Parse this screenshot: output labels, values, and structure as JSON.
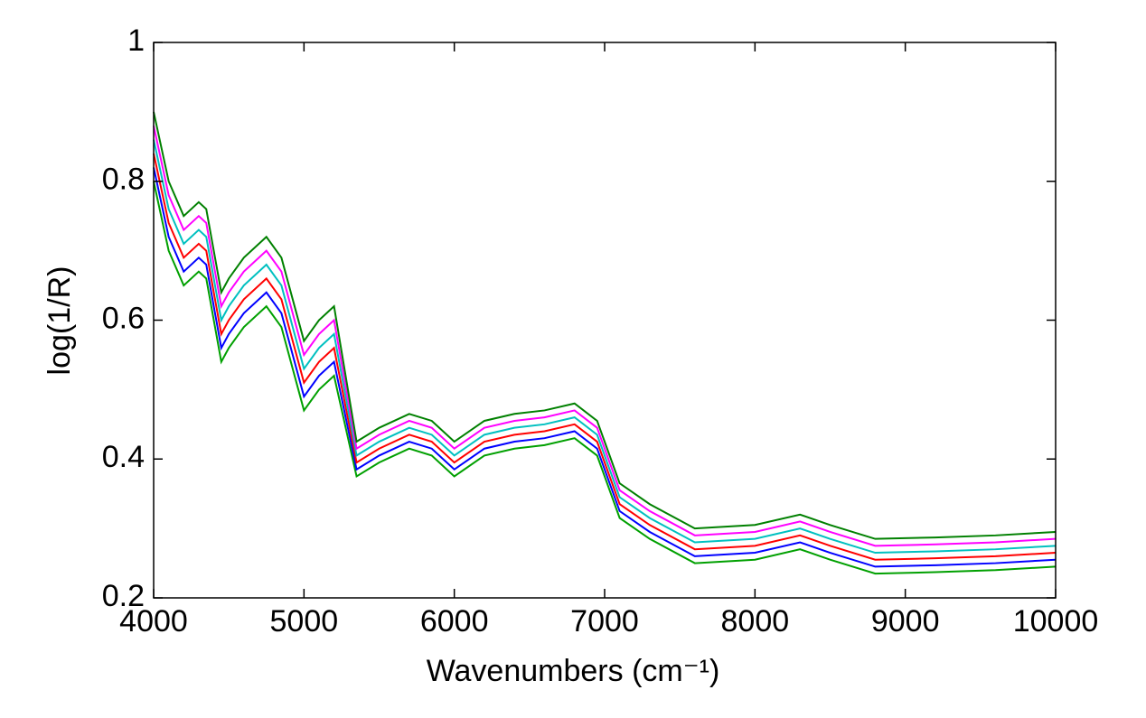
{
  "chart_data": {
    "type": "line",
    "xlabel": "Wavenumbers (cm⁻¹)",
    "ylabel": "log(1/R)",
    "x": [
      4000,
      4100,
      4200,
      4300,
      4350,
      4450,
      4500,
      4600,
      4750,
      4850,
      5000,
      5100,
      5200,
      5350,
      5500,
      5700,
      5850,
      6000,
      6200,
      6400,
      6600,
      6800,
      6950,
      7100,
      7300,
      7600,
      8000,
      8300,
      8500,
      8800,
      9200,
      9600,
      10000
    ],
    "series": [
      {
        "color": "#00a000",
        "values": [
          0.8,
          0.7,
          0.65,
          0.67,
          0.66,
          0.54,
          0.56,
          0.59,
          0.62,
          0.59,
          0.47,
          0.5,
          0.52,
          0.375,
          0.395,
          0.415,
          0.405,
          0.375,
          0.405,
          0.415,
          0.42,
          0.43,
          0.405,
          0.315,
          0.285,
          0.25,
          0.255,
          0.27,
          0.255,
          0.235,
          0.237,
          0.24,
          0.245
        ]
      },
      {
        "color": "#0000ff",
        "values": [
          0.82,
          0.72,
          0.67,
          0.69,
          0.68,
          0.56,
          0.58,
          0.61,
          0.64,
          0.61,
          0.49,
          0.52,
          0.54,
          0.385,
          0.405,
          0.425,
          0.415,
          0.385,
          0.415,
          0.425,
          0.43,
          0.44,
          0.415,
          0.325,
          0.295,
          0.26,
          0.265,
          0.28,
          0.265,
          0.245,
          0.247,
          0.25,
          0.255
        ]
      },
      {
        "color": "#ff0000",
        "values": [
          0.84,
          0.74,
          0.69,
          0.71,
          0.7,
          0.58,
          0.6,
          0.63,
          0.66,
          0.63,
          0.51,
          0.54,
          0.56,
          0.395,
          0.415,
          0.435,
          0.425,
          0.395,
          0.425,
          0.435,
          0.44,
          0.45,
          0.425,
          0.335,
          0.305,
          0.27,
          0.275,
          0.29,
          0.275,
          0.255,
          0.257,
          0.26,
          0.265
        ]
      },
      {
        "color": "#00c0c0",
        "values": [
          0.86,
          0.76,
          0.71,
          0.73,
          0.72,
          0.6,
          0.62,
          0.65,
          0.68,
          0.65,
          0.53,
          0.56,
          0.58,
          0.405,
          0.425,
          0.445,
          0.435,
          0.405,
          0.435,
          0.445,
          0.45,
          0.46,
          0.435,
          0.345,
          0.315,
          0.28,
          0.285,
          0.3,
          0.285,
          0.265,
          0.267,
          0.27,
          0.275
        ]
      },
      {
        "color": "#ff00ff",
        "values": [
          0.88,
          0.78,
          0.73,
          0.75,
          0.74,
          0.62,
          0.64,
          0.67,
          0.7,
          0.67,
          0.55,
          0.58,
          0.6,
          0.415,
          0.435,
          0.455,
          0.445,
          0.415,
          0.445,
          0.455,
          0.46,
          0.47,
          0.445,
          0.355,
          0.325,
          0.29,
          0.295,
          0.31,
          0.295,
          0.275,
          0.277,
          0.28,
          0.285
        ]
      },
      {
        "color": "#008000",
        "values": [
          0.9,
          0.8,
          0.75,
          0.77,
          0.76,
          0.64,
          0.66,
          0.69,
          0.72,
          0.69,
          0.57,
          0.6,
          0.62,
          0.425,
          0.445,
          0.465,
          0.455,
          0.425,
          0.455,
          0.465,
          0.47,
          0.48,
          0.455,
          0.365,
          0.335,
          0.3,
          0.305,
          0.32,
          0.305,
          0.285,
          0.287,
          0.29,
          0.295
        ]
      }
    ],
    "xlim": [
      4000,
      10000
    ],
    "xticks": [
      4000,
      5000,
      6000,
      7000,
      8000,
      9000,
      10000
    ],
    "ylim": [
      0.2,
      1
    ],
    "yticks": [
      0.2,
      0.4,
      0.6,
      0.8,
      1
    ]
  }
}
